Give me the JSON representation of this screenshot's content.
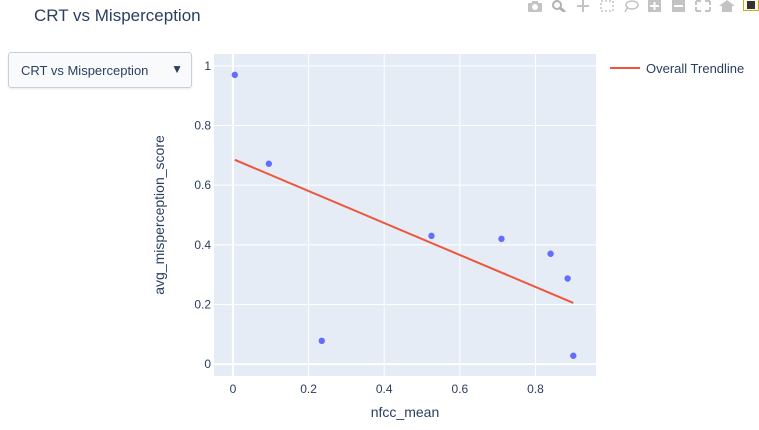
{
  "title": "CRT vs Misperception",
  "dropdown": {
    "selected": "CRT vs Misperception",
    "arrow": "▼"
  },
  "modebar": [
    "camera-icon",
    "zoom-icon",
    "pan-icon",
    "box-select-icon",
    "lasso-select-icon",
    "zoom-in-icon",
    "zoom-out-icon",
    "autoscale-icon",
    "reset-axes-icon",
    "plotly-logo-icon"
  ],
  "colors": {
    "points": "#636efa",
    "trendline": "#ef553b",
    "plot_bg": "#e5ecf6",
    "grid": "#ffffff"
  },
  "chart_data": {
    "type": "scatter",
    "xlabel": "nfcc_mean",
    "ylabel": "avg_misperception_score",
    "xlim": [
      -0.05,
      0.96
    ],
    "ylim": [
      -0.04,
      1.04
    ],
    "xticks": [
      0,
      0.2,
      0.4,
      0.6,
      0.8
    ],
    "xtick_labels": [
      "0",
      "0.2",
      "0.4",
      "0.6",
      "0.8"
    ],
    "yticks": [
      0,
      0.2,
      0.4,
      0.6,
      0.8,
      1
    ],
    "ytick_labels": [
      "0",
      "0.2",
      "0.4",
      "0.6",
      "0.8",
      "1"
    ],
    "grid": true,
    "legend_position": "top-right",
    "series": [
      {
        "type": "scatter",
        "x": [
          0.005,
          0.095,
          0.235,
          0.525,
          0.71,
          0.84,
          0.885,
          0.9
        ],
        "y": [
          0.97,
          0.672,
          0.078,
          0.43,
          0.42,
          0.37,
          0.287,
          0.028
        ]
      },
      {
        "type": "line",
        "name": "Overall Trendline",
        "x": [
          0.005,
          0.9
        ],
        "y": [
          0.685,
          0.205
        ]
      }
    ]
  }
}
